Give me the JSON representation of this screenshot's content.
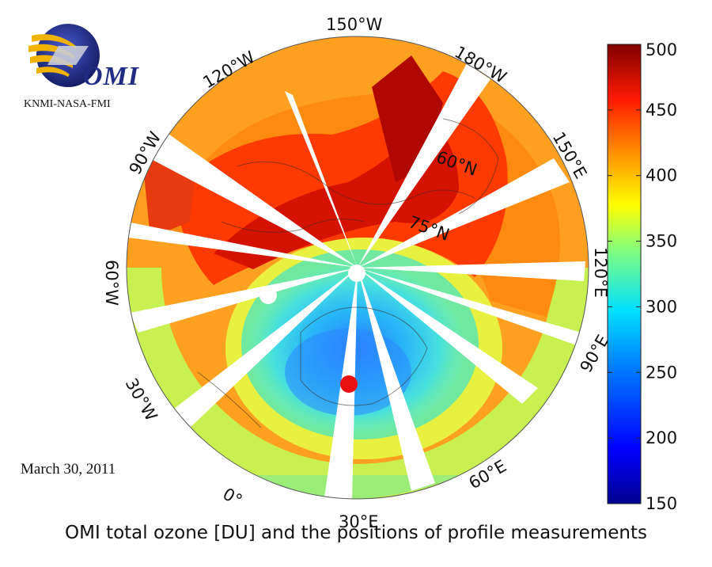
{
  "logo": {
    "name": "OMI",
    "credit": "KNMI-NASA-FMI"
  },
  "date": "March 30, 2011",
  "caption": "OMI total ozone [DU] and the positions of profile measurements",
  "map": {
    "projection": "north polar stereographic",
    "longitude_labels": [
      "150°W",
      "180°W",
      "150°E",
      "120°E",
      "90°E",
      "60°E",
      "30°E",
      "0°",
      "30°W",
      "60°W",
      "90°W",
      "120°W"
    ],
    "latitude_labels": [
      "60°N",
      "75°N"
    ],
    "markers": [
      {
        "color": "#ffffff",
        "kind": "profile-measurement"
      },
      {
        "color": "#ffffff",
        "kind": "profile-measurement"
      },
      {
        "color": "#e81010",
        "kind": "profile-measurement"
      }
    ]
  },
  "colorbar": {
    "unit": "DU",
    "ticks": [
      500,
      450,
      400,
      350,
      300,
      250,
      200,
      150
    ],
    "range": [
      150,
      500
    ],
    "colormap": "jet"
  }
}
